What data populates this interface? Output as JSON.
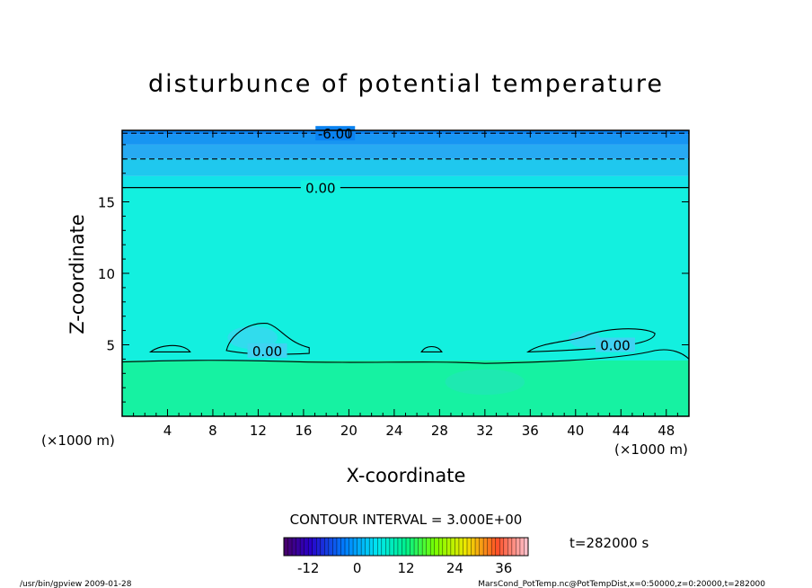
{
  "chart_data": {
    "type": "heatmap",
    "title": "disturbunce of potential temperature",
    "xlabel": "X-coordinate",
    "ylabel": "Z-coordinate",
    "x_unit": "(×1000 m)",
    "x_unit_right": "(×1000 m)",
    "xlim": [
      0,
      50
    ],
    "ylim": [
      0,
      20
    ],
    "x_ticks": [
      "4",
      "8",
      "12",
      "16",
      "20",
      "24",
      "28",
      "32",
      "36",
      "40",
      "44",
      "48"
    ],
    "y_ticks": [
      "5",
      "10",
      "15"
    ],
    "bands": [
      {
        "z": [
          19.7,
          20.0
        ],
        "color": "#0a82f0"
      },
      {
        "z": [
          19.0,
          19.7
        ],
        "color": "#1795f2"
      },
      {
        "z": [
          18.0,
          19.0
        ],
        "color": "#27aaf2"
      },
      {
        "z": [
          16.8,
          18.0
        ],
        "color": "#1fc8ee"
      },
      {
        "z": [
          16.0,
          16.8
        ],
        "color": "#12e4e8"
      },
      {
        "z": [
          3.9,
          16.0
        ],
        "color": "#13f0df"
      },
      {
        "z": [
          0.0,
          3.9
        ],
        "color": "#16f2a2"
      }
    ],
    "contours": [
      {
        "z": 19.8,
        "style": "dashed"
      },
      {
        "z": 18.0,
        "style": "dashed"
      },
      {
        "z": 16.0,
        "style": "solid"
      }
    ],
    "contour_labels": [
      {
        "text": "-6.00",
        "x": 18.8,
        "z": 19.8
      },
      {
        "text": "0.00",
        "x": 17.5,
        "z": 16.0
      },
      {
        "text": "0.00",
        "x": 12.8,
        "z": 4.6
      },
      {
        "text": "0.00",
        "x": 43.5,
        "z": 5.0
      }
    ],
    "contour_interval": "CONTOUR INTERVAL = 3.000E+00",
    "colorbar": {
      "min": -18,
      "max": 42,
      "ticks": [
        "-12",
        "0",
        "12",
        "24",
        "36"
      ],
      "tick_values": [
        -12,
        0,
        12,
        24,
        36
      ]
    },
    "time_label": "t=282000 s"
  },
  "footer": {
    "left": "/usr/bin/gpview  2009-01-28",
    "right": "MarsCond_PotTemp.nc@PotTempDist,x=0:50000,z=0:20000,t=282000"
  }
}
